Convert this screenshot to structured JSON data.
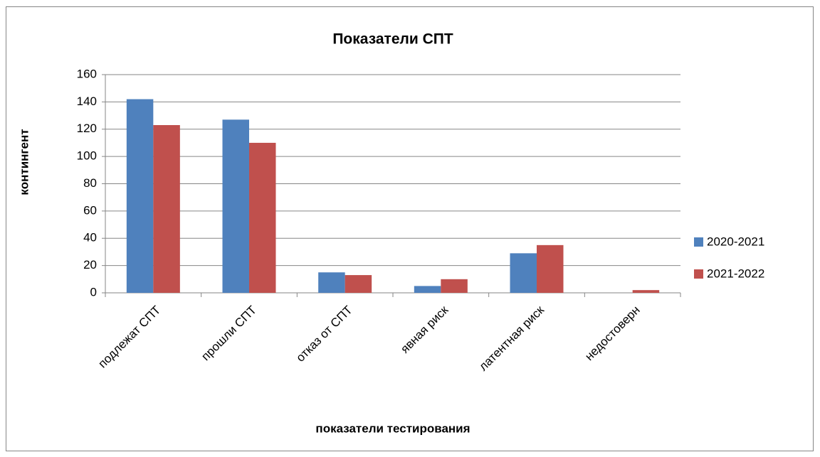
{
  "chart_data": {
    "type": "bar",
    "title": "Показатели СПТ",
    "x_label": "показатели тестирования",
    "y_label": "контингент",
    "categories": [
      "подлежат СПТ",
      "прошли СПТ",
      "отказ от СПТ",
      "явная риск",
      "латентная риск",
      "недостоверн"
    ],
    "series": [
      {
        "name": "2020-2021",
        "color": "#4f81bd",
        "values": [
          142,
          127,
          15,
          5,
          29,
          0
        ]
      },
      {
        "name": "2021-2022",
        "color": "#c0504d",
        "values": [
          123,
          110,
          13,
          10,
          35,
          2
        ]
      }
    ],
    "ylim": [
      0,
      160
    ],
    "yticks": [
      0,
      20,
      40,
      60,
      80,
      100,
      120,
      140,
      160
    ],
    "grid": true,
    "legend": "right"
  }
}
